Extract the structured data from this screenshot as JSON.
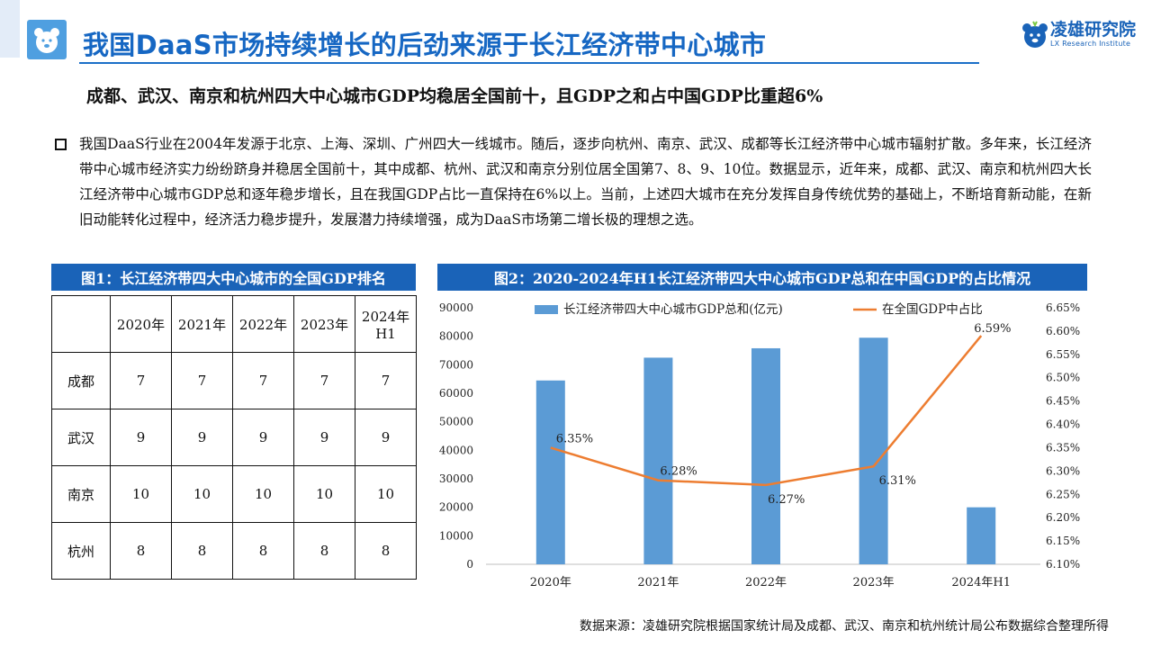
{
  "header": {
    "title": "我国DaaS市场持续增长的后劲来源于长江经济带中心城市",
    "brand_cn": "凌雄研究院",
    "brand_en": "LX Research Institute"
  },
  "subtitle": "成都、武汉、南京和杭州四大中心城市GDP均稳居全国前十，且GDP之和占中国GDP比重超6%",
  "paragraph": "我国DaaS行业在2004年发源于北京、上海、深圳、广州四大一线城市。随后，逐步向杭州、南京、武汉、成都等长江经济带中心城市辐射扩散。多年来，长江经济带中心城市经济实力纷纷跻身并稳居全国前十，其中成都、杭州、武汉和南京分别位居全国第7、8、9、10位。数据显示，近年来，成都、武汉、南京和杭州四大长江经济带中心城市GDP总和逐年稳步增长，且在我国GDP占比一直保持在6%以上。当前，上述四大城市在充分发挥自身传统优势的基础上，不断培育新动能，在新旧动能转化过程中，经济活力稳步提升，发展潜力持续增强，成为DaaS市场第二增长极的理想之选。",
  "figure1": {
    "title": "图1：长江经济带四大中心城市的全国GDP排名",
    "columns": [
      "",
      "2020年",
      "2021年",
      "2022年",
      "2023年",
      "2024年\nH1"
    ],
    "rows": [
      {
        "city": "成都",
        "ranks": [
          "7",
          "7",
          "7",
          "7",
          "7"
        ]
      },
      {
        "city": "武汉",
        "ranks": [
          "9",
          "9",
          "9",
          "9",
          "9"
        ]
      },
      {
        "city": "南京",
        "ranks": [
          "10",
          "10",
          "10",
          "10",
          "10"
        ]
      },
      {
        "city": "杭州",
        "ranks": [
          "8",
          "8",
          "8",
          "8",
          "8"
        ]
      }
    ]
  },
  "figure2": {
    "title": "图2：2020-2024年H1长江经济带四大中心城市GDP总和在中国GDP的占比情况"
  },
  "chart_data": {
    "type": "bar",
    "categories": [
      "2020年",
      "2021年",
      "2022年",
      "2023年",
      "2024年H1"
    ],
    "series": [
      {
        "name": "长江经济带四大中心城市GDP总和(亿元)",
        "type": "bar",
        "axis": "left",
        "color": "#5b9bd5",
        "values": [
          64500,
          72500,
          75800,
          79500,
          20000
        ]
      },
      {
        "name": "在全国GDP中占比",
        "type": "line",
        "axis": "right",
        "color": "#ed7d31",
        "values": [
          6.35,
          6.28,
          6.27,
          6.31,
          6.59
        ],
        "labels": [
          "6.35%",
          "6.28%",
          "6.27%",
          "6.31%",
          "6.59%"
        ]
      }
    ],
    "y_left": {
      "min": 0,
      "max": 90000,
      "ticks": [
        "0",
        "10000",
        "20000",
        "30000",
        "40000",
        "50000",
        "60000",
        "70000",
        "80000",
        "90000"
      ]
    },
    "y_right": {
      "min": 6.1,
      "max": 6.65,
      "ticks": [
        "6.10%",
        "6.15%",
        "6.20%",
        "6.25%",
        "6.30%",
        "6.35%",
        "6.40%",
        "6.45%",
        "6.50%",
        "6.55%",
        "6.60%",
        "6.65%"
      ]
    },
    "grid": false,
    "legend": "top"
  },
  "source": "数据来源：凌雄研究院根据国家统计局及成都、武汉、南京和杭州统计局公布数据综合整理所得"
}
